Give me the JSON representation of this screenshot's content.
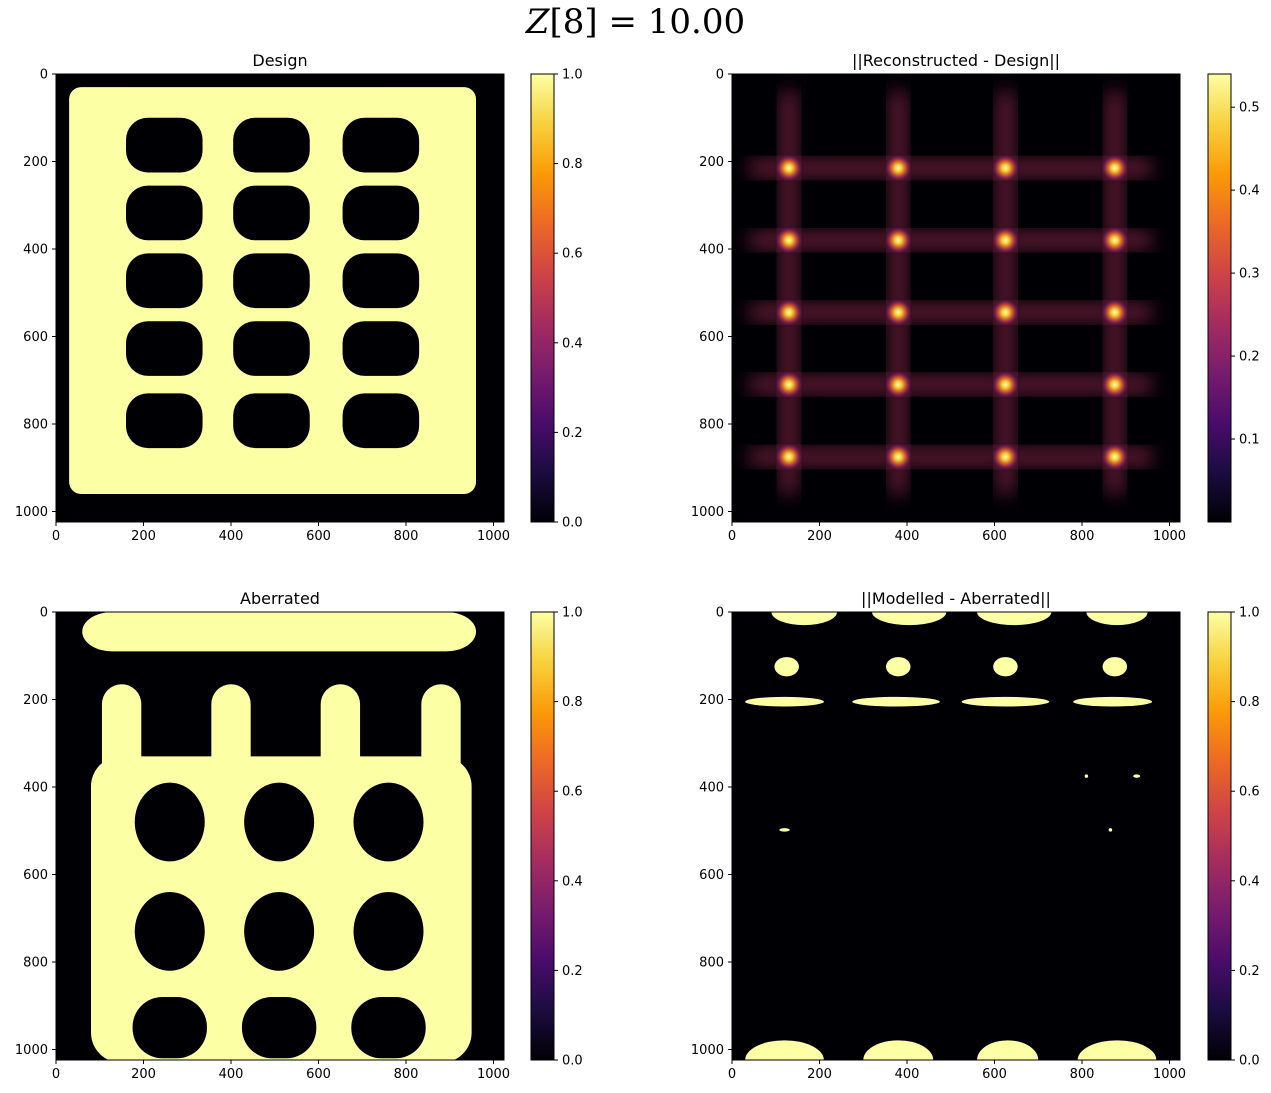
{
  "figure": {
    "suptitle_math": "Z[8] = 10.00",
    "suptitle_symbol": "Z",
    "suptitle_index": "[8]",
    "suptitle_eq": " = ",
    "suptitle_value": "10.00"
  },
  "colors": {
    "cmap": "inferno",
    "stops": [
      "#000004",
      "#1b0c41",
      "#4a0c6b",
      "#781c6d",
      "#a52c60",
      "#cf4446",
      "#ed6925",
      "#fb9b06",
      "#f7d13d",
      "#fcffa4"
    ]
  },
  "chart_data": [
    {
      "type": "heatmap",
      "title": "Design",
      "xticks": [
        "0",
        "200",
        "400",
        "600",
        "800",
        "1000"
      ],
      "yticks": [
        "0",
        "200",
        "400",
        "600",
        "800",
        "1000"
      ],
      "xlim": [
        0,
        1024
      ],
      "ylim": [
        1024,
        0
      ],
      "colorbar": {
        "range": [
          0.0,
          1.0
        ],
        "ticks": [
          "0.0",
          "0.2",
          "0.4",
          "0.6",
          "0.8",
          "1.0"
        ]
      },
      "pattern": {
        "kind": "grid",
        "cols": 3,
        "rows": 5,
        "frame": [
          30,
          960
        ],
        "value_on": 1.0,
        "value_off": 0.0
      }
    },
    {
      "type": "heatmap",
      "title": "||Reconstructed - Design||",
      "xticks": [
        "0",
        "200",
        "400",
        "600",
        "800",
        "1000"
      ],
      "yticks": [
        "0",
        "200",
        "400",
        "600",
        "800",
        "1000"
      ],
      "xlim": [
        0,
        1024
      ],
      "ylim": [
        1024,
        0
      ],
      "colorbar": {
        "range": [
          0.0,
          0.54
        ],
        "ticks": [
          "0.1",
          "0.2",
          "0.3",
          "0.4",
          "0.5"
        ]
      },
      "pattern": {
        "kind": "peaks",
        "peak_x": [
          130,
          380,
          625,
          875
        ],
        "peak_y": [
          215,
          380,
          545,
          710,
          875
        ],
        "max": 0.54
      }
    },
    {
      "type": "heatmap",
      "title": "Aberrated",
      "xticks": [
        "0",
        "200",
        "400",
        "600",
        "800",
        "1000"
      ],
      "yticks": [
        "0",
        "200",
        "400",
        "600",
        "800",
        "1000"
      ],
      "xlim": [
        0,
        1024
      ],
      "ylim": [
        1024,
        0
      ],
      "colorbar": {
        "range": [
          0.0,
          1.0
        ],
        "ticks": [
          "0.0",
          "0.2",
          "0.4",
          "0.6",
          "0.8",
          "1.0"
        ]
      },
      "pattern": {
        "kind": "aberrated",
        "value_on": 1.0,
        "value_off": 0.0
      }
    },
    {
      "type": "heatmap",
      "title": "||Modelled - Aberrated||",
      "xticks": [
        "0",
        "200",
        "400",
        "600",
        "800",
        "1000"
      ],
      "yticks": [
        "0",
        "200",
        "400",
        "600",
        "800",
        "1000"
      ],
      "xlim": [
        0,
        1024
      ],
      "ylim": [
        1024,
        0
      ],
      "colorbar": {
        "range": [
          0.0,
          1.0
        ],
        "ticks": [
          "0.0",
          "0.2",
          "0.4",
          "0.6",
          "0.8",
          "1.0"
        ]
      },
      "pattern": {
        "kind": "sparse",
        "value_on": 1.0,
        "value_off": 0.0
      }
    }
  ]
}
